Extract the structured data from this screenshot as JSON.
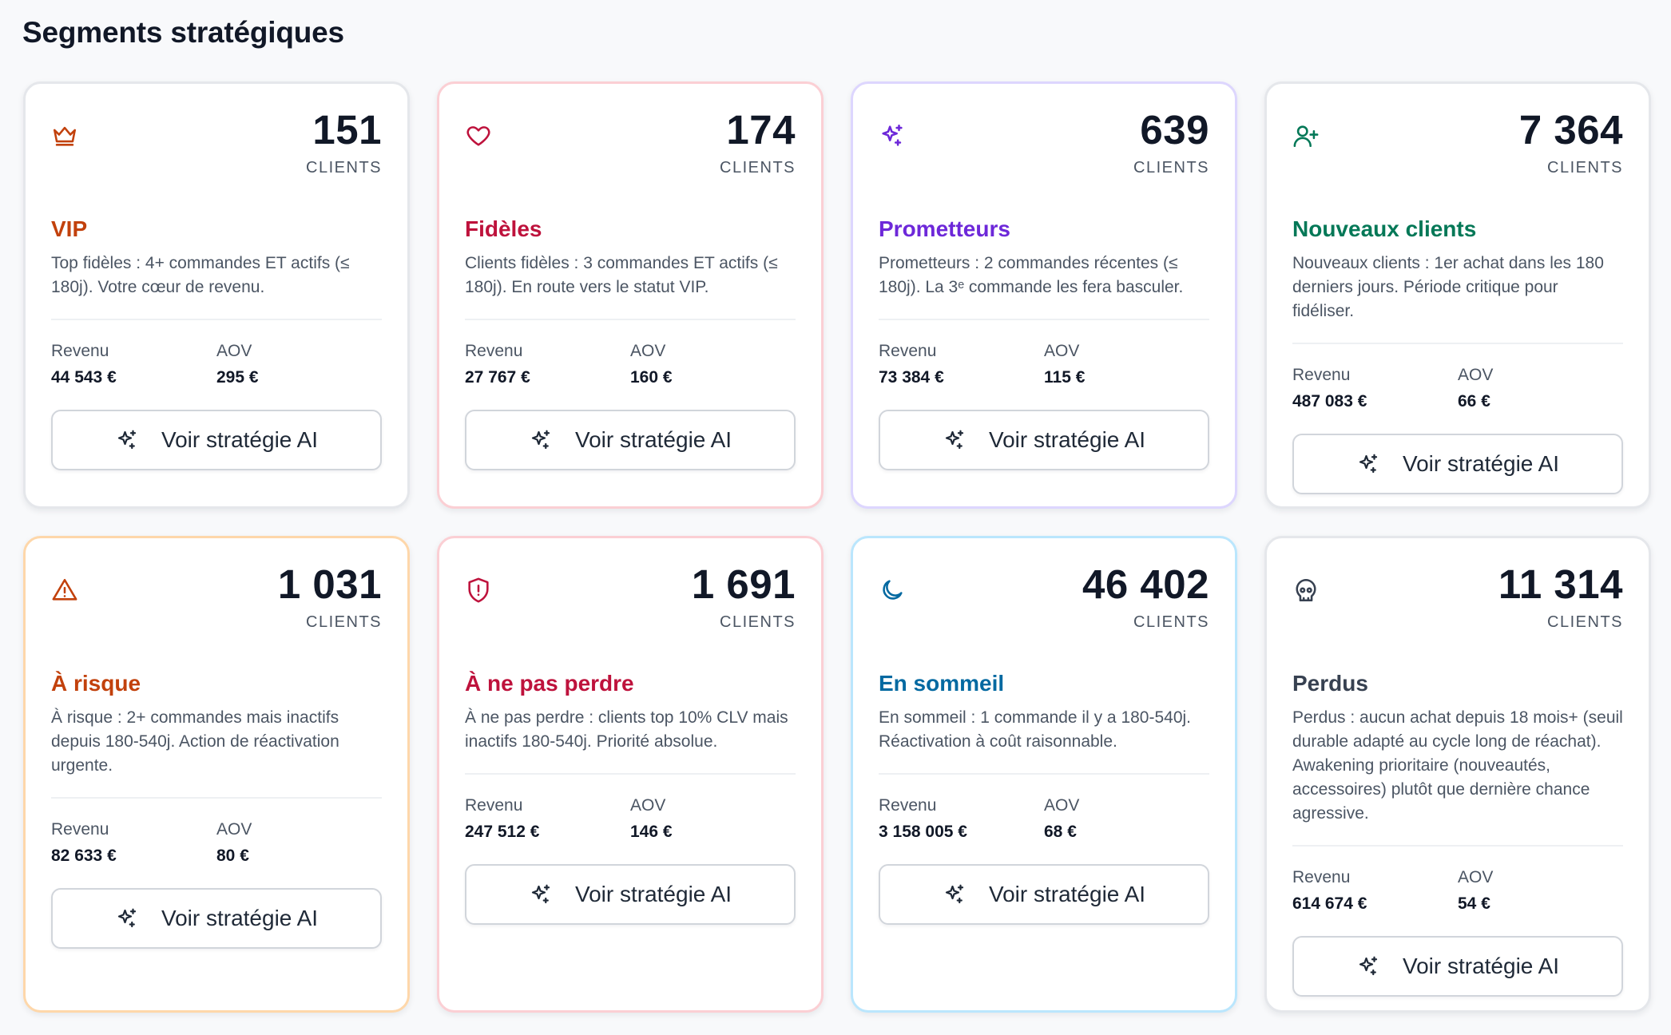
{
  "page": {
    "title": "Segments stratégiques"
  },
  "labels": {
    "clients_unit": "CLIENTS",
    "revenue": "Revenu",
    "aov": "AOV",
    "ai_button": "Voir stratégie AI"
  },
  "segments": [
    {
      "icon": "crown-icon",
      "accent": "#c2410c",
      "border": "#e5e7eb",
      "count": "151",
      "name": "VIP",
      "description": "Top fidèles : 4+ commandes ET actifs (≤ 180j). Votre cœur de revenu.",
      "revenue": "44 543 €",
      "aov": "295 €"
    },
    {
      "icon": "heart-icon",
      "accent": "#be123c",
      "border": "#fbcfd4",
      "count": "174",
      "name": "Fidèles",
      "description": "Clients fidèles : 3 commandes ET actifs (≤ 180j). En route vers le statut VIP.",
      "revenue": "27 767 €",
      "aov": "160 €"
    },
    {
      "icon": "sparkles-icon",
      "accent": "#6d28d9",
      "border": "#ddd6fe",
      "count": "639",
      "name": "Prometteurs",
      "description": "Prometteurs : 2 commandes récentes (≤ 180j). La 3ᵉ commande les fera basculer.",
      "revenue": "73 384 €",
      "aov": "115 €"
    },
    {
      "icon": "user-plus-icon",
      "accent": "#047857",
      "border": "#e5e7eb",
      "count": "7 364",
      "name": "Nouveaux clients",
      "description": "Nouveaux clients : 1er achat dans les 180 derniers jours. Période critique pour fidéliser.",
      "revenue": "487 083 €",
      "aov": "66 €"
    },
    {
      "icon": "alert-triangle-icon",
      "accent": "#c2410c",
      "border": "#fed7aa",
      "count": "1 031",
      "name": "À risque",
      "description": "À risque : 2+ commandes mais inactifs depuis 180-540j. Action de réactivation urgente.",
      "revenue": "82 633 €",
      "aov": "80 €"
    },
    {
      "icon": "shield-alert-icon",
      "accent": "#be123c",
      "border": "#fbcfd4",
      "count": "1 691",
      "name": "À ne pas perdre",
      "description": "À ne pas perdre : clients top 10% CLV mais inactifs 180-540j. Priorité absolue.",
      "revenue": "247 512 €",
      "aov": "146 €"
    },
    {
      "icon": "moon-icon",
      "accent": "#0369a1",
      "border": "#bae6fd",
      "count": "46 402",
      "name": "En sommeil",
      "description": "En sommeil : 1 commande il y a 180-540j. Réactivation à coût raisonnable.",
      "revenue": "3 158 005 €",
      "aov": "68 €"
    },
    {
      "icon": "skull-icon",
      "accent": "#374151",
      "border": "#e5e7eb",
      "count": "11 314",
      "name": "Perdus",
      "description": "Perdus : aucun achat depuis 18 mois+ (seuil durable adapté au cycle long de réachat). Awakening prioritaire (nouveautés, accessoires) plutôt que dernière chance agressive.",
      "revenue": "614 674 €",
      "aov": "54 €"
    }
  ]
}
